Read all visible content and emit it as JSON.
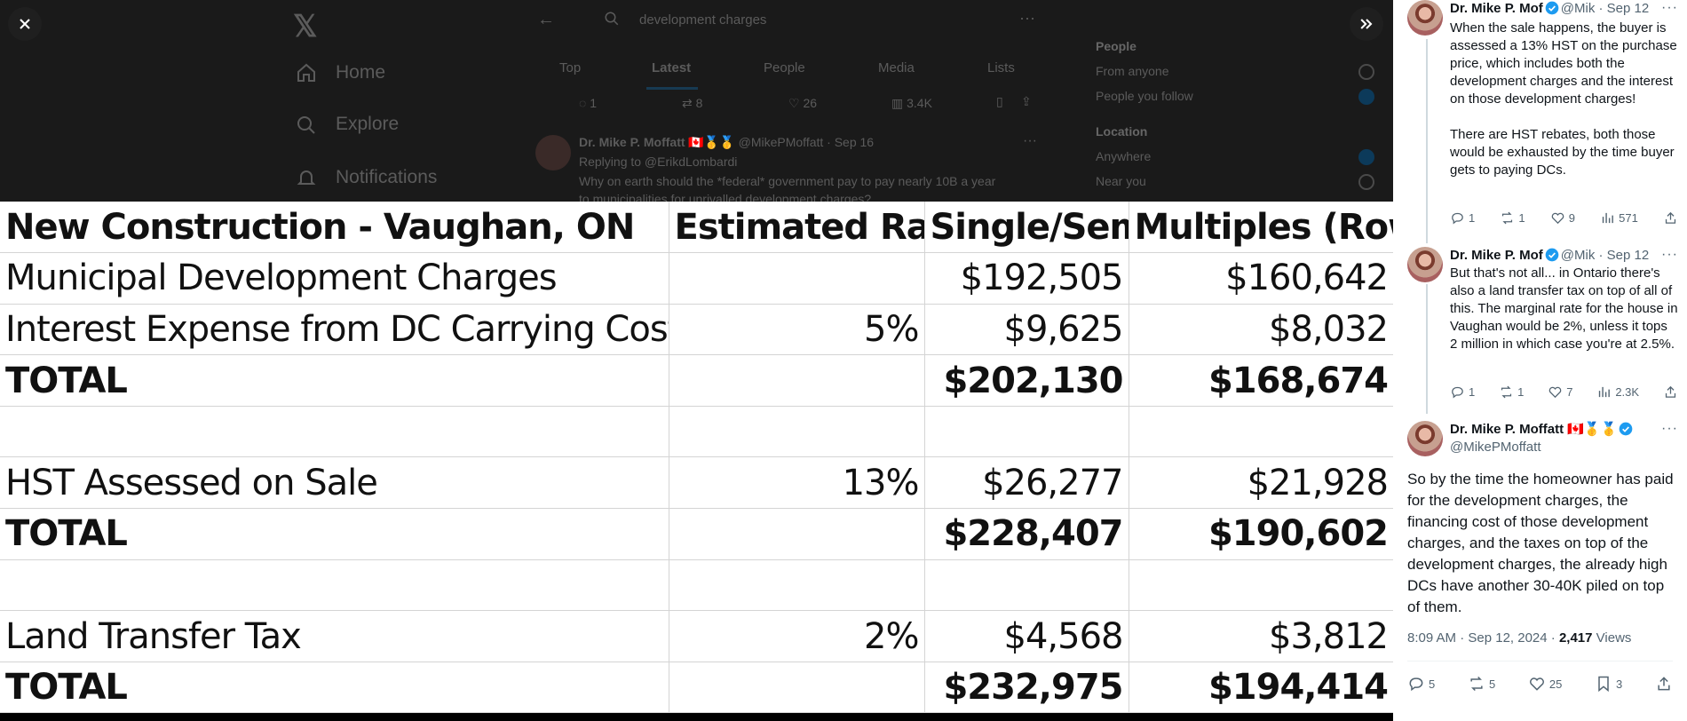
{
  "background": {
    "nav": [
      "Home",
      "Explore",
      "Notifications"
    ],
    "search_text": "development charges",
    "tabs": [
      "Top",
      "Latest",
      "People",
      "Media",
      "Lists"
    ],
    "active_tab": "Latest",
    "tweet_stats": [
      "1",
      "8",
      "26",
      "3.4K"
    ],
    "tweet_author": "Dr. Mike P. Moffatt 🇨🇦🥇🥇",
    "tweet_handle": "@MikePMoffatt · Sep 16",
    "tweet_reply": "Replying to @ErikdLombardi",
    "tweet_text": "Why on earth should the *federal* government pay to pay nearly 10B a year",
    "tweet_text2": "to municipalities for unrivalled development charges?",
    "filters": {
      "people_heading": "People",
      "people_options": [
        "From anyone",
        "People you follow"
      ],
      "location_heading": "Location",
      "location_options": [
        "Anywhere",
        "Near you"
      ]
    }
  },
  "viewer": {
    "close_icon": "close-icon",
    "expand_icon": "double-chevron-right-icon"
  },
  "table": {
    "headers": [
      "New Construction - Vaughan, ON",
      "Estimated Rate",
      "Single/Semi",
      "Multiples (Row)"
    ],
    "rows": [
      {
        "label": "Municipal Development Charges",
        "rate": "",
        "single": "$192,505",
        "multiple": "$160,642",
        "bold": false
      },
      {
        "label": "Interest Expense from DC Carrying Cost",
        "rate": "5%",
        "single": "$9,625",
        "multiple": "$8,032",
        "bold": false
      },
      {
        "label": "TOTAL",
        "rate": "",
        "single": "$202,130",
        "multiple": "$168,674",
        "bold": true
      },
      {
        "label": "",
        "rate": "",
        "single": "",
        "multiple": "",
        "bold": false
      },
      {
        "label": "HST Assessed on Sale",
        "rate": "13%",
        "single": "$26,277",
        "multiple": "$21,928",
        "bold": false
      },
      {
        "label": "TOTAL",
        "rate": "",
        "single": "$228,407",
        "multiple": "$190,602",
        "bold": true
      },
      {
        "label": "",
        "rate": "",
        "single": "",
        "multiple": "",
        "bold": false
      },
      {
        "label": "Land Transfer Tax",
        "rate": "2%",
        "single": "$4,568",
        "multiple": "$3,812",
        "bold": false
      },
      {
        "label": "TOTAL",
        "rate": "",
        "single": "$232,975",
        "multiple": "$194,414",
        "bold": true
      }
    ]
  },
  "sidebar": {
    "tweets": [
      {
        "name": "Dr. Mike P. Mof",
        "handle": "@Mik",
        "date": "· Sep 12",
        "body": "When the sale happens, the buyer is assessed a 13% HST on the purchase price, which includes both the development charges and the interest on those development charges!\n\nThere are HST rebates, both those would be exhausted by the time buyer gets to paying DCs.",
        "replies": "1",
        "reposts": "1",
        "likes": "9",
        "views": "571"
      },
      {
        "name": "Dr. Mike P. Mof",
        "handle": "@Mik",
        "date": "· Sep 12",
        "body": "But that's not all... in Ontario there's also a land transfer tax on top of all of this. The marginal rate for the house in Vaughan would be 2%, unless it tops 2 million in which case you're at 2.5%.",
        "replies": "1",
        "reposts": "1",
        "likes": "7",
        "views": "2.3K"
      }
    ],
    "main": {
      "name": "Dr. Mike P. Moffatt 🇨🇦🥇🥇",
      "handle": "@MikePMoffatt",
      "body": "So by the time the homeowner has paid for the development charges, the financing cost of those development charges, and the taxes on top of the development charges, the already high DCs have another 30-40K piled on top of them.",
      "time": "8:09 AM · Sep 12, 2024 · ",
      "views_count": "2,417",
      "views_label": " Views",
      "replies": "5",
      "reposts": "5",
      "likes": "25",
      "bookmarks": "3"
    },
    "colors": {
      "verified": "#1d9bf0",
      "muted": "#536471",
      "text": "#0f1419"
    }
  }
}
